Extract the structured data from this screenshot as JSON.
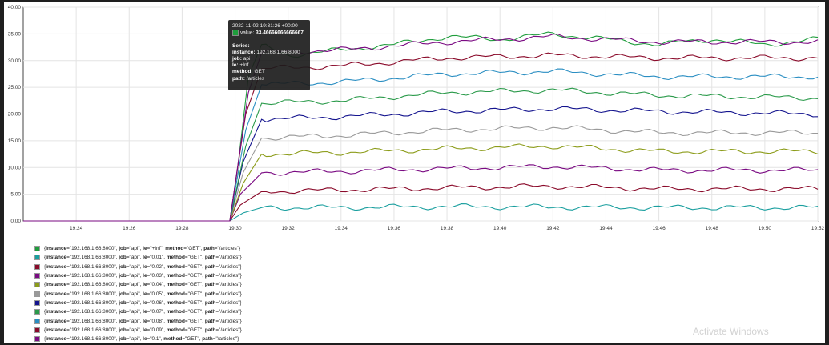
{
  "tooltip": {
    "time": "2022-11-02 19:31:26 +00:00",
    "value_label": "value:",
    "value": "33.46666666666667",
    "series_heading": "Series:",
    "labels": [
      {
        "key": "instance:",
        "value": "192.168.1.66:8000"
      },
      {
        "key": "job:",
        "value": "api"
      },
      {
        "key": "le:",
        "value": "+Inf"
      },
      {
        "key": "method:",
        "value": "GET"
      },
      {
        "key": "path:",
        "value": "/articles"
      }
    ]
  },
  "legend": [
    {
      "le": "+Inf",
      "color": "#1f9d3c"
    },
    {
      "le": "0.01",
      "color": "#1a9f9f"
    },
    {
      "le": "0.02",
      "color": "#8a0a2a"
    },
    {
      "le": "0.03",
      "color": "#7a0a82"
    },
    {
      "le": "0.04",
      "color": "#8c9c1a"
    },
    {
      "le": "0.05",
      "color": "#9a9a9a"
    },
    {
      "le": "0.06",
      "color": "#14148e"
    },
    {
      "le": "0.07",
      "color": "#2a9a4a"
    },
    {
      "le": "0.08",
      "color": "#2a8ec2"
    },
    {
      "le": "0.09",
      "color": "#8a0a2a"
    },
    {
      "le": "0.1",
      "color": "#7a0a82"
    }
  ],
  "legend_text": {
    "open": "{",
    "instance_key": "instance",
    "instance_val": "=\"192.168.1.66:8000\", ",
    "job_key": "job",
    "job_val": "=\"api\", ",
    "le_key": "le",
    "le_eq": "=\"",
    "le_close": "\", ",
    "method_key": "method",
    "method_val": "=\"GET\", ",
    "path_key": "path",
    "path_val": "=\"/articles\"}"
  },
  "watermark": "Activate Windows",
  "chart_data": {
    "type": "line",
    "ylim": [
      0,
      40
    ],
    "yticks": [
      "0.00",
      "5.00",
      "10.00",
      "15.00",
      "20.00",
      "25.00",
      "30.00",
      "35.00",
      "40.00"
    ],
    "xlim": [
      "19:22",
      "19:52"
    ],
    "xticks": [
      "19:24",
      "19:26",
      "19:28",
      "19:30",
      "19:32",
      "19:34",
      "19:36",
      "19:38",
      "19:40",
      "19:42",
      "19:44",
      "19:46",
      "19:48",
      "19:50",
      "19:52"
    ],
    "grid": true,
    "legend_position": "bottom",
    "series": [
      {
        "color": "#1f9d3c",
        "values": [
          {
            "t": "19:22",
            "y": 0
          },
          {
            "t": "19:29.8",
            "y": 0
          },
          {
            "t": "19:30.1",
            "y": 10
          },
          {
            "t": "19:30.5",
            "y": 27
          },
          {
            "t": "19:31",
            "y": 33
          },
          {
            "t": "19:32",
            "y": 31
          },
          {
            "t": "19:34",
            "y": 32
          },
          {
            "t": "19:36",
            "y": 33
          },
          {
            "t": "19:38",
            "y": 34.5
          },
          {
            "t": "19:40",
            "y": 34
          },
          {
            "t": "19:42",
            "y": 35
          },
          {
            "t": "19:44",
            "y": 34
          },
          {
            "t": "19:46",
            "y": 33
          },
          {
            "t": "19:48",
            "y": 34
          },
          {
            "t": "19:50",
            "y": 33
          },
          {
            "t": "19:52",
            "y": 34
          }
        ]
      },
      {
        "color": "#1a9f9f",
        "values": [
          {
            "t": "19:22",
            "y": 0
          },
          {
            "t": "19:29.8",
            "y": 0
          },
          {
            "t": "19:30.3",
            "y": 1.5
          },
          {
            "t": "19:31",
            "y": 2.5
          },
          {
            "t": "19:34",
            "y": 2.5
          },
          {
            "t": "19:38",
            "y": 2.7
          },
          {
            "t": "19:42",
            "y": 2.6
          },
          {
            "t": "19:46",
            "y": 2.5
          },
          {
            "t": "19:52",
            "y": 2.5
          }
        ]
      },
      {
        "color": "#8a0a2a",
        "values": [
          {
            "t": "19:22",
            "y": 0
          },
          {
            "t": "19:29.8",
            "y": 0
          },
          {
            "t": "19:30.2",
            "y": 3
          },
          {
            "t": "19:31",
            "y": 5.5
          },
          {
            "t": "19:34",
            "y": 5.8
          },
          {
            "t": "19:38",
            "y": 6.2
          },
          {
            "t": "19:42",
            "y": 6.5
          },
          {
            "t": "19:46",
            "y": 6
          },
          {
            "t": "19:52",
            "y": 6
          }
        ]
      },
      {
        "color": "#7a0a82",
        "values": [
          {
            "t": "19:22",
            "y": 0
          },
          {
            "t": "19:29.8",
            "y": 0
          },
          {
            "t": "19:30.2",
            "y": 5
          },
          {
            "t": "19:31",
            "y": 9
          },
          {
            "t": "19:34",
            "y": 9.3
          },
          {
            "t": "19:38",
            "y": 9.8
          },
          {
            "t": "19:42",
            "y": 10.2
          },
          {
            "t": "19:46",
            "y": 9.5
          },
          {
            "t": "19:52",
            "y": 9.5
          }
        ]
      },
      {
        "color": "#8c9c1a",
        "values": [
          {
            "t": "19:22",
            "y": 0
          },
          {
            "t": "19:29.8",
            "y": 0
          },
          {
            "t": "19:30.3",
            "y": 7
          },
          {
            "t": "19:31",
            "y": 12.5
          },
          {
            "t": "19:34",
            "y": 12.8
          },
          {
            "t": "19:38",
            "y": 13.5
          },
          {
            "t": "19:42",
            "y": 14
          },
          {
            "t": "19:46",
            "y": 13
          },
          {
            "t": "19:52",
            "y": 13
          }
        ]
      },
      {
        "color": "#9a9a9a",
        "values": [
          {
            "t": "19:22",
            "y": 0
          },
          {
            "t": "19:29.8",
            "y": 0
          },
          {
            "t": "19:30.3",
            "y": 9
          },
          {
            "t": "19:31",
            "y": 15.5
          },
          {
            "t": "19:34",
            "y": 16
          },
          {
            "t": "19:38",
            "y": 17
          },
          {
            "t": "19:42",
            "y": 17.5
          },
          {
            "t": "19:46",
            "y": 16.5
          },
          {
            "t": "19:52",
            "y": 16.5
          }
        ]
      },
      {
        "color": "#14148e",
        "values": [
          {
            "t": "19:22",
            "y": 0
          },
          {
            "t": "19:29.8",
            "y": 0
          },
          {
            "t": "19:30.3",
            "y": 11
          },
          {
            "t": "19:31",
            "y": 19
          },
          {
            "t": "19:34",
            "y": 19.5
          },
          {
            "t": "19:38",
            "y": 20.5
          },
          {
            "t": "19:42",
            "y": 21
          },
          {
            "t": "19:46",
            "y": 20.5
          },
          {
            "t": "19:52",
            "y": 20
          }
        ]
      },
      {
        "color": "#2a9a4a",
        "values": [
          {
            "t": "19:22",
            "y": 0
          },
          {
            "t": "19:29.8",
            "y": 0
          },
          {
            "t": "19:30.4",
            "y": 14
          },
          {
            "t": "19:31",
            "y": 22
          },
          {
            "t": "19:34",
            "y": 22.5
          },
          {
            "t": "19:38",
            "y": 24
          },
          {
            "t": "19:42",
            "y": 24.5
          },
          {
            "t": "19:46",
            "y": 23.5
          },
          {
            "t": "19:52",
            "y": 23
          }
        ]
      },
      {
        "color": "#2a8ec2",
        "values": [
          {
            "t": "19:22",
            "y": 0
          },
          {
            "t": "19:29.8",
            "y": 0
          },
          {
            "t": "19:30.4",
            "y": 17
          },
          {
            "t": "19:31",
            "y": 25.5
          },
          {
            "t": "19:34",
            "y": 26
          },
          {
            "t": "19:38",
            "y": 27.5
          },
          {
            "t": "19:42",
            "y": 28
          },
          {
            "t": "19:46",
            "y": 27
          },
          {
            "t": "19:52",
            "y": 27
          }
        ]
      },
      {
        "color": "#8a0a2a",
        "values": [
          {
            "t": "19:22",
            "y": 0
          },
          {
            "t": "19:29.8",
            "y": 0
          },
          {
            "t": "19:30.4",
            "y": 20
          },
          {
            "t": "19:31",
            "y": 28.5
          },
          {
            "t": "19:34",
            "y": 29
          },
          {
            "t": "19:38",
            "y": 30.5
          },
          {
            "t": "19:42",
            "y": 31
          },
          {
            "t": "19:46",
            "y": 30.5
          },
          {
            "t": "19:52",
            "y": 30.5
          }
        ]
      },
      {
        "color": "#7a0a82",
        "values": [
          {
            "t": "19:22",
            "y": 0
          },
          {
            "t": "19:29.8",
            "y": 0
          },
          {
            "t": "19:30.5",
            "y": 24
          },
          {
            "t": "19:31",
            "y": 31.5
          },
          {
            "t": "19:34",
            "y": 32
          },
          {
            "t": "19:38",
            "y": 33.5
          },
          {
            "t": "19:42",
            "y": 34.5
          },
          {
            "t": "19:46",
            "y": 33.5
          },
          {
            "t": "19:52",
            "y": 33.5
          }
        ]
      }
    ]
  }
}
